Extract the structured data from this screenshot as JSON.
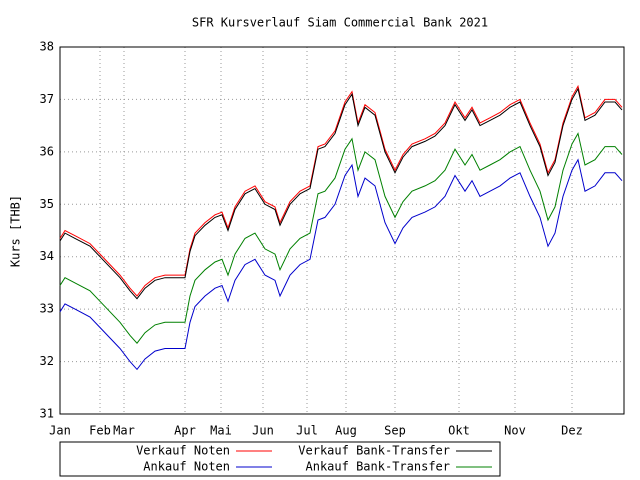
{
  "chart_data": {
    "type": "line",
    "title": "SFR Kursverlauf Siam Commercial Bank 2021",
    "ylabel": "Kurs [THB]",
    "xlim": [
      0,
      282
    ],
    "ylim": [
      31,
      38
    ],
    "grid": true,
    "legend": "bottom",
    "xticks": [
      {
        "value": 0,
        "label": "Jan"
      },
      {
        "value": 20,
        "label": "Feb"
      },
      {
        "value": 32,
        "label": "Mar"
      },
      {
        "value": 62.5,
        "label": "Apr"
      },
      {
        "value": 80.5,
        "label": "Mai"
      },
      {
        "value": 101.5,
        "label": "Jun"
      },
      {
        "value": 123.5,
        "label": "Jul"
      },
      {
        "value": 143,
        "label": "Aug"
      },
      {
        "value": 167.5,
        "label": "Sep"
      },
      {
        "value": 199.5,
        "label": "Okt"
      },
      {
        "value": 227.5,
        "label": "Nov"
      },
      {
        "value": 256,
        "label": "Dez"
      }
    ],
    "yticks": [
      31,
      32,
      33,
      34,
      35,
      36,
      37,
      38
    ],
    "x": [
      0,
      2.5,
      7.5,
      15,
      20,
      25,
      30,
      35,
      38.5,
      42.5,
      47.5,
      52.5,
      57.5,
      62.5,
      65,
      67.5,
      72.5,
      77.5,
      81,
      84,
      87.5,
      92.5,
      97.5,
      102.5,
      107.5,
      110,
      115,
      120,
      125,
      129,
      132.5,
      137.5,
      142.5,
      146,
      149,
      152.5,
      157.5,
      162.5,
      167.5,
      171.5,
      176,
      182.5,
      187.5,
      192.5,
      197.5,
      202.5,
      206,
      210,
      215,
      220,
      225,
      230,
      235,
      240,
      244,
      247.5,
      251.5,
      256,
      259,
      262.5,
      267.5,
      272.5,
      277.5,
      281
    ],
    "series": [
      {
        "name": "Verkauf Noten",
        "color": "#ff0000",
        "values": [
          34.35,
          34.5,
          34.4,
          34.25,
          34.05,
          33.85,
          33.65,
          33.4,
          33.25,
          33.45,
          33.6,
          33.65,
          33.65,
          33.65,
          34.15,
          34.45,
          34.65,
          34.8,
          34.85,
          34.55,
          34.95,
          35.25,
          35.35,
          35.05,
          34.95,
          34.65,
          35.05,
          35.25,
          35.35,
          36.1,
          36.15,
          36.4,
          36.95,
          37.15,
          36.55,
          36.9,
          36.75,
          36.05,
          35.65,
          35.95,
          36.15,
          36.25,
          36.35,
          36.55,
          36.95,
          36.65,
          36.85,
          36.55,
          36.65,
          36.75,
          36.9,
          37.0,
          36.55,
          36.15,
          35.6,
          35.85,
          36.55,
          37.05,
          37.25,
          36.65,
          36.75,
          37.0,
          37.0,
          36.85
        ]
      },
      {
        "name": "Verkauf Bank-Transfer",
        "color": "#000000",
        "values": [
          34.3,
          34.45,
          34.35,
          34.2,
          34.0,
          33.8,
          33.6,
          33.35,
          33.2,
          33.4,
          33.55,
          33.6,
          33.6,
          33.6,
          34.1,
          34.4,
          34.6,
          34.75,
          34.8,
          34.5,
          34.9,
          35.2,
          35.3,
          35.0,
          34.9,
          34.6,
          35.0,
          35.2,
          35.3,
          36.05,
          36.1,
          36.35,
          36.9,
          37.1,
          36.5,
          36.85,
          36.7,
          36.0,
          35.6,
          35.9,
          36.1,
          36.2,
          36.3,
          36.5,
          36.9,
          36.6,
          36.8,
          36.5,
          36.6,
          36.7,
          36.85,
          36.95,
          36.5,
          36.1,
          35.55,
          35.8,
          36.5,
          37.0,
          37.2,
          36.6,
          36.7,
          36.95,
          36.95,
          36.8
        ]
      },
      {
        "name": "Ankauf Noten",
        "color": "#0000cc",
        "values": [
          32.95,
          33.1,
          33.0,
          32.85,
          32.65,
          32.45,
          32.25,
          32.0,
          31.85,
          32.05,
          32.2,
          32.25,
          32.25,
          32.25,
          32.75,
          33.05,
          33.25,
          33.4,
          33.45,
          33.15,
          33.55,
          33.85,
          33.95,
          33.65,
          33.55,
          33.25,
          33.65,
          33.85,
          33.95,
          34.7,
          34.75,
          35.0,
          35.55,
          35.75,
          35.15,
          35.5,
          35.35,
          34.65,
          34.25,
          34.55,
          34.75,
          34.85,
          34.95,
          35.15,
          35.55,
          35.25,
          35.45,
          35.15,
          35.25,
          35.35,
          35.5,
          35.6,
          35.15,
          34.75,
          34.2,
          34.45,
          35.15,
          35.65,
          35.85,
          35.25,
          35.35,
          35.6,
          35.6,
          35.45
        ]
      },
      {
        "name": "Ankauf Bank-Transfer",
        "color": "#008000",
        "values": [
          33.45,
          33.6,
          33.5,
          33.35,
          33.15,
          32.95,
          32.75,
          32.5,
          32.35,
          32.55,
          32.7,
          32.75,
          32.75,
          32.75,
          33.25,
          33.55,
          33.75,
          33.9,
          33.95,
          33.65,
          34.05,
          34.35,
          34.45,
          34.15,
          34.05,
          33.75,
          34.15,
          34.35,
          34.45,
          35.2,
          35.25,
          35.5,
          36.05,
          36.25,
          35.65,
          36.0,
          35.85,
          35.15,
          34.75,
          35.05,
          35.25,
          35.35,
          35.45,
          35.65,
          36.05,
          35.75,
          35.95,
          35.65,
          35.75,
          35.85,
          36.0,
          36.1,
          35.65,
          35.25,
          34.7,
          34.95,
          35.65,
          36.15,
          36.35,
          35.75,
          35.85,
          36.1,
          36.1,
          35.95
        ]
      }
    ]
  }
}
